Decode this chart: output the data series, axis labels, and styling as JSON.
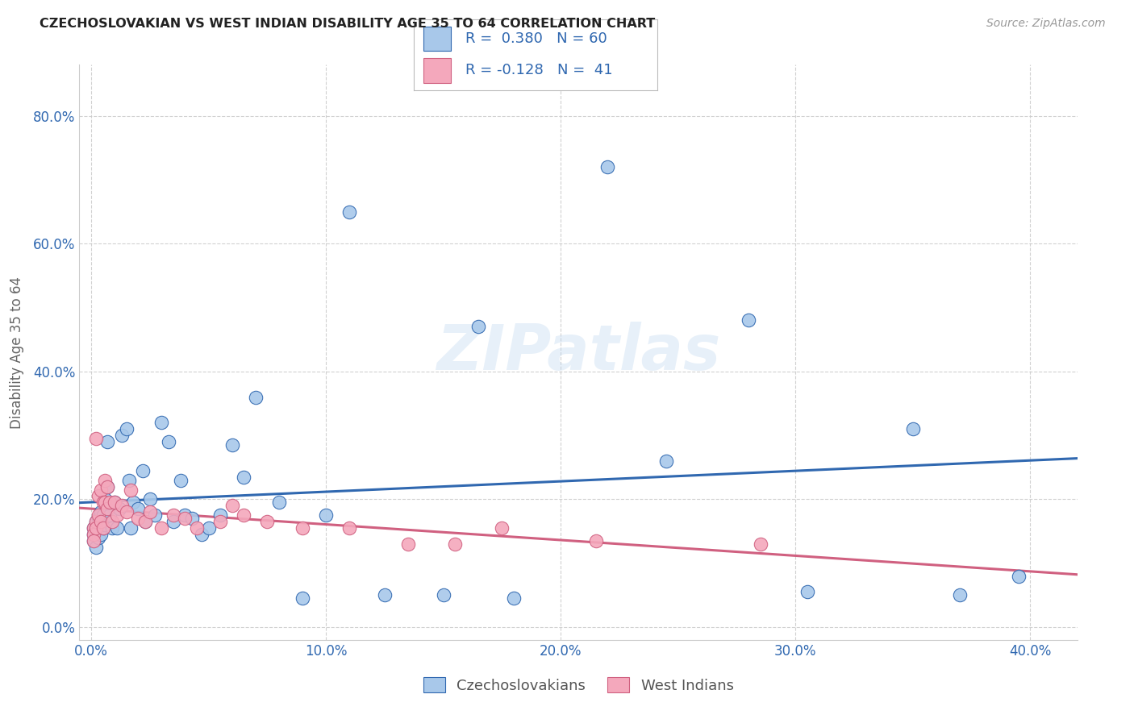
{
  "title": "CZECHOSLOVAKIAN VS WEST INDIAN DISABILITY AGE 35 TO 64 CORRELATION CHART",
  "source": "Source: ZipAtlas.com",
  "xlim": [
    -0.005,
    0.42
  ],
  "ylim": [
    -0.02,
    0.88
  ],
  "xticks": [
    0.0,
    0.1,
    0.2,
    0.3,
    0.4
  ],
  "yticks": [
    0.0,
    0.2,
    0.4,
    0.6,
    0.8
  ],
  "xtick_labels": [
    "0.0%",
    "10.0%",
    "20.0%",
    "30.0%",
    "40.0%"
  ],
  "ytick_labels": [
    "0.0%",
    "20.0%",
    "40.0%",
    "60.0%",
    "80.0%"
  ],
  "blue_color": "#a8c8ea",
  "pink_color": "#f4a8bc",
  "trendline_blue_color": "#3068b0",
  "trendline_pink_color": "#d06080",
  "tick_color": "#3068b0",
  "grid_color": "#cccccc",
  "ylabel": "Disability Age 35 to 64",
  "watermark": "ZIPatlas",
  "legend_line1": "R =  0.380   N = 60",
  "legend_line2": "R = -0.128   N =  41",
  "blue_x": [
    0.001,
    0.001,
    0.001,
    0.002,
    0.002,
    0.002,
    0.003,
    0.003,
    0.003,
    0.004,
    0.004,
    0.004,
    0.005,
    0.005,
    0.006,
    0.006,
    0.007,
    0.007,
    0.008,
    0.009,
    0.01,
    0.011,
    0.012,
    0.013,
    0.015,
    0.016,
    0.017,
    0.018,
    0.02,
    0.022,
    0.023,
    0.025,
    0.027,
    0.03,
    0.033,
    0.035,
    0.038,
    0.04,
    0.043,
    0.047,
    0.05,
    0.055,
    0.06,
    0.065,
    0.07,
    0.08,
    0.09,
    0.1,
    0.11,
    0.125,
    0.15,
    0.165,
    0.18,
    0.22,
    0.245,
    0.28,
    0.305,
    0.35,
    0.37,
    0.395
  ],
  "blue_y": [
    0.155,
    0.145,
    0.135,
    0.165,
    0.15,
    0.125,
    0.155,
    0.14,
    0.17,
    0.16,
    0.145,
    0.18,
    0.155,
    0.175,
    0.16,
    0.2,
    0.22,
    0.29,
    0.175,
    0.155,
    0.195,
    0.155,
    0.185,
    0.3,
    0.31,
    0.23,
    0.155,
    0.195,
    0.185,
    0.245,
    0.165,
    0.2,
    0.175,
    0.32,
    0.29,
    0.165,
    0.23,
    0.175,
    0.17,
    0.145,
    0.155,
    0.175,
    0.285,
    0.235,
    0.36,
    0.195,
    0.045,
    0.175,
    0.65,
    0.05,
    0.05,
    0.47,
    0.045,
    0.72,
    0.26,
    0.48,
    0.055,
    0.31,
    0.05,
    0.08
  ],
  "pink_x": [
    0.001,
    0.001,
    0.001,
    0.002,
    0.002,
    0.002,
    0.003,
    0.003,
    0.004,
    0.004,
    0.005,
    0.005,
    0.006,
    0.006,
    0.007,
    0.007,
    0.008,
    0.009,
    0.01,
    0.011,
    0.013,
    0.015,
    0.017,
    0.02,
    0.023,
    0.025,
    0.03,
    0.035,
    0.04,
    0.045,
    0.055,
    0.06,
    0.065,
    0.075,
    0.09,
    0.11,
    0.135,
    0.155,
    0.175,
    0.215,
    0.285
  ],
  "pink_y": [
    0.155,
    0.145,
    0.135,
    0.165,
    0.155,
    0.295,
    0.175,
    0.205,
    0.165,
    0.215,
    0.155,
    0.195,
    0.195,
    0.23,
    0.185,
    0.22,
    0.195,
    0.165,
    0.195,
    0.175,
    0.19,
    0.18,
    0.215,
    0.17,
    0.165,
    0.18,
    0.155,
    0.175,
    0.17,
    0.155,
    0.165,
    0.19,
    0.175,
    0.165,
    0.155,
    0.155,
    0.13,
    0.13,
    0.155,
    0.135,
    0.13
  ]
}
